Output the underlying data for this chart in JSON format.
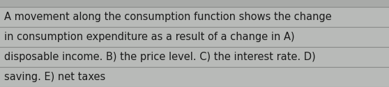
{
  "text_lines": [
    "A movement along the consumption function shows the change",
    "in consumption expenditure as a result of a change in A)",
    "disposable income. B) the price level. C) the interest rate. D)",
    "saving. E) net taxes"
  ],
  "background_color": "#a8aaa8",
  "row_bg_color": "#b8bab8",
  "text_color": "#1a1a1a",
  "font_size": 10.5,
  "line_color": "#888a88",
  "fig_width": 5.58,
  "fig_height": 1.26,
  "dpi": 100
}
